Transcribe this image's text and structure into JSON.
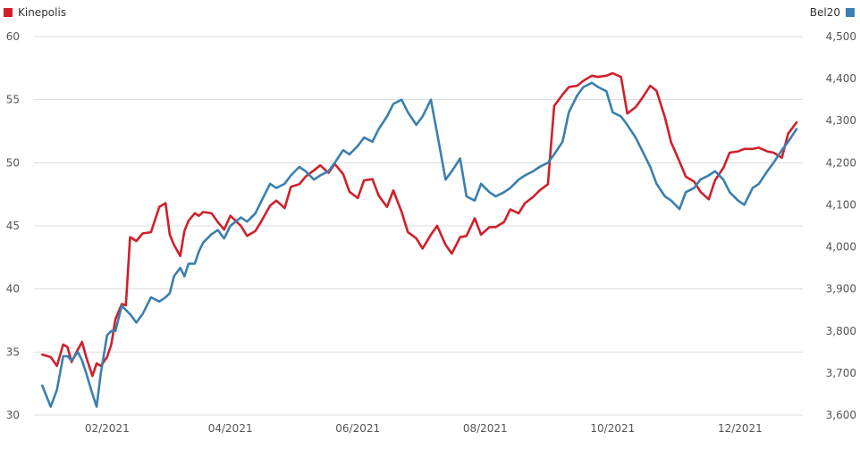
{
  "chart_data": {
    "type": "line",
    "legend": [
      {
        "name": "Kinepolis",
        "color": "#d0202a",
        "axis": "left",
        "placement": "top-left"
      },
      {
        "name": "Bel20",
        "color": "#3a7fb0",
        "axis": "right",
        "placement": "top-right"
      }
    ],
    "x_ticks": [
      "02/2021",
      "04/2021",
      "06/2021",
      "08/2021",
      "10/2021",
      "12/2021"
    ],
    "x_range": [
      "2020-12-28",
      "2021-12-31"
    ],
    "y_left": {
      "ticks": [
        "30",
        "35",
        "40",
        "45",
        "50",
        "55",
        "60"
      ],
      "ylim": [
        30,
        60
      ]
    },
    "y_right": {
      "ticks": [
        "3,600",
        "3,700",
        "3,800",
        "3,900",
        "4,000",
        "4,100",
        "4,200",
        "4,300",
        "4,400",
        "4,500"
      ],
      "ylim": [
        3600,
        4500
      ]
    },
    "grid": "horizontal",
    "series": [
      {
        "name": "Kinepolis",
        "axis": "left",
        "color": "#d0202a",
        "x": [
          "2021-01-01",
          "2021-01-05",
          "2021-01-08",
          "2021-01-11",
          "2021-01-13",
          "2021-01-15",
          "2021-01-18",
          "2021-01-20",
          "2021-01-22",
          "2021-01-25",
          "2021-01-27",
          "2021-01-29",
          "2021-02-01",
          "2021-02-03",
          "2021-02-05",
          "2021-02-08",
          "2021-02-10",
          "2021-02-12",
          "2021-02-15",
          "2021-02-18",
          "2021-02-22",
          "2021-02-26",
          "2021-03-01",
          "2021-03-03",
          "2021-03-05",
          "2021-03-08",
          "2021-03-10",
          "2021-03-12",
          "2021-03-15",
          "2021-03-17",
          "2021-03-19",
          "2021-03-23",
          "2021-03-26",
          "2021-03-29",
          "2021-04-01",
          "2021-04-06",
          "2021-04-09",
          "2021-04-13",
          "2021-04-16",
          "2021-04-20",
          "2021-04-23",
          "2021-04-27",
          "2021-04-30",
          "2021-05-04",
          "2021-05-07",
          "2021-05-11",
          "2021-05-14",
          "2021-05-18",
          "2021-05-21",
          "2021-05-25",
          "2021-05-28",
          "2021-06-01",
          "2021-06-04",
          "2021-06-08",
          "2021-06-11",
          "2021-06-15",
          "2021-06-18",
          "2021-06-22",
          "2021-06-25",
          "2021-06-29",
          "2021-07-02",
          "2021-07-06",
          "2021-07-09",
          "2021-07-13",
          "2021-07-16",
          "2021-07-20",
          "2021-07-23",
          "2021-07-27",
          "2021-07-30",
          "2021-08-03",
          "2021-08-06",
          "2021-08-10",
          "2021-08-13",
          "2021-08-17",
          "2021-08-20",
          "2021-08-24",
          "2021-08-27",
          "2021-08-31",
          "2021-09-03",
          "2021-09-07",
          "2021-09-10",
          "2021-09-14",
          "2021-09-17",
          "2021-09-21",
          "2021-09-24",
          "2021-09-28",
          "2021-10-01",
          "2021-10-05",
          "2021-10-08",
          "2021-10-12",
          "2021-10-15",
          "2021-10-19",
          "2021-10-22",
          "2021-10-26",
          "2021-10-29",
          "2021-11-02",
          "2021-11-05",
          "2021-11-09",
          "2021-11-12",
          "2021-11-16",
          "2021-11-19",
          "2021-11-23",
          "2021-11-26",
          "2021-11-30",
          "2021-12-03",
          "2021-12-07",
          "2021-12-10",
          "2021-12-14",
          "2021-12-17",
          "2021-12-21",
          "2021-12-24",
          "2021-12-28"
        ],
        "values": [
          34.8,
          34.6,
          33.9,
          35.6,
          35.4,
          34.2,
          35.2,
          35.8,
          34.6,
          33.1,
          34.1,
          33.9,
          34.6,
          35.6,
          37.6,
          38.8,
          38.7,
          44.1,
          43.8,
          44.4,
          44.5,
          46.5,
          46.8,
          44.3,
          43.5,
          42.6,
          44.6,
          45.4,
          46.0,
          45.8,
          46.1,
          46.0,
          45.3,
          44.7,
          45.8,
          45.0,
          44.2,
          44.6,
          45.4,
          46.6,
          47.0,
          46.4,
          48.1,
          48.3,
          48.9,
          49.4,
          49.8,
          49.2,
          49.9,
          49.1,
          47.7,
          47.2,
          48.6,
          48.7,
          47.4,
          46.5,
          47.8,
          46.1,
          44.5,
          44.0,
          43.2,
          44.3,
          45.0,
          43.5,
          42.8,
          44.1,
          44.2,
          45.6,
          44.3,
          44.9,
          44.9,
          45.3,
          46.3,
          46.0,
          46.8,
          47.3,
          47.8,
          48.3,
          54.5,
          55.4,
          56.0,
          56.1,
          56.5,
          56.9,
          56.8,
          56.9,
          57.1,
          56.8,
          53.9,
          54.4,
          55.1,
          56.1,
          55.7,
          53.6,
          51.6,
          50.1,
          48.9,
          48.5,
          47.7,
          47.1,
          48.6,
          49.6,
          50.8,
          50.9,
          51.1,
          51.1,
          51.2,
          50.9,
          50.8,
          50.4,
          52.3,
          53.2
        ],
        "data_visible": true
      },
      {
        "name": "Bel20",
        "axis": "right",
        "color": "#3a7fb0",
        "x": [
          "2021-01-01",
          "2021-01-05",
          "2021-01-08",
          "2021-01-11",
          "2021-01-13",
          "2021-01-15",
          "2021-01-18",
          "2021-01-20",
          "2021-01-22",
          "2021-01-25",
          "2021-01-27",
          "2021-01-29",
          "2021-02-01",
          "2021-02-03",
          "2021-02-05",
          "2021-02-08",
          "2021-02-10",
          "2021-02-12",
          "2021-02-15",
          "2021-02-18",
          "2021-02-22",
          "2021-02-26",
          "2021-03-01",
          "2021-03-03",
          "2021-03-05",
          "2021-03-08",
          "2021-03-10",
          "2021-03-12",
          "2021-03-15",
          "2021-03-17",
          "2021-03-19",
          "2021-03-23",
          "2021-03-26",
          "2021-03-29",
          "2021-04-01",
          "2021-04-06",
          "2021-04-09",
          "2021-04-13",
          "2021-04-16",
          "2021-04-20",
          "2021-04-23",
          "2021-04-27",
          "2021-04-30",
          "2021-05-04",
          "2021-05-07",
          "2021-05-11",
          "2021-05-14",
          "2021-05-18",
          "2021-05-21",
          "2021-05-25",
          "2021-05-28",
          "2021-06-01",
          "2021-06-04",
          "2021-06-08",
          "2021-06-11",
          "2021-06-15",
          "2021-06-18",
          "2021-06-22",
          "2021-06-25",
          "2021-06-29",
          "2021-07-02",
          "2021-07-06",
          "2021-07-09",
          "2021-07-13",
          "2021-07-16",
          "2021-07-20",
          "2021-07-23",
          "2021-07-27",
          "2021-07-30",
          "2021-08-03",
          "2021-08-06",
          "2021-08-10",
          "2021-08-13",
          "2021-08-17",
          "2021-08-20",
          "2021-08-24",
          "2021-08-27",
          "2021-08-31",
          "2021-09-03",
          "2021-09-07",
          "2021-09-10",
          "2021-09-14",
          "2021-09-17",
          "2021-09-21",
          "2021-09-24",
          "2021-09-28",
          "2021-10-01",
          "2021-10-05",
          "2021-10-08",
          "2021-10-12",
          "2021-10-15",
          "2021-10-19",
          "2021-10-22",
          "2021-10-26",
          "2021-10-29",
          "2021-11-02",
          "2021-11-05",
          "2021-11-09",
          "2021-11-12",
          "2021-11-16",
          "2021-11-19",
          "2021-11-23",
          "2021-11-26",
          "2021-11-30",
          "2021-12-03",
          "2021-12-07",
          "2021-12-10",
          "2021-12-14",
          "2021-12-17",
          "2021-12-21",
          "2021-12-24",
          "2021-12-28"
        ],
        "values": [
          3670,
          3620,
          3660,
          3740,
          3740,
          3730,
          3750,
          3730,
          3700,
          3650,
          3620,
          3700,
          3790,
          3800,
          3800,
          3860,
          3850,
          3840,
          3820,
          3840,
          3880,
          3870,
          3880,
          3890,
          3930,
          3950,
          3930,
          3960,
          3960,
          3990,
          4010,
          4030,
          4040,
          4020,
          4050,
          4070,
          4060,
          4080,
          4110,
          4150,
          4140,
          4150,
          4170,
          4190,
          4180,
          4160,
          4170,
          4180,
          4200,
          4230,
          4220,
          4240,
          4260,
          4250,
          4280,
          4310,
          4340,
          4350,
          4320,
          4290,
          4310,
          4350,
          4270,
          4160,
          4180,
          4210,
          4120,
          4110,
          4150,
          4130,
          4120,
          4130,
          4140,
          4160,
          4170,
          4180,
          4190,
          4200,
          4220,
          4250,
          4320,
          4360,
          4380,
          4390,
          4380,
          4370,
          4320,
          4310,
          4290,
          4260,
          4230,
          4190,
          4150,
          4120,
          4110,
          4090,
          4130,
          4140,
          4160,
          4170,
          4180,
          4160,
          4130,
          4110,
          4100,
          4140,
          4150,
          4180,
          4200,
          4230,
          4250,
          4280
        ],
        "data_visible": true
      }
    ]
  }
}
